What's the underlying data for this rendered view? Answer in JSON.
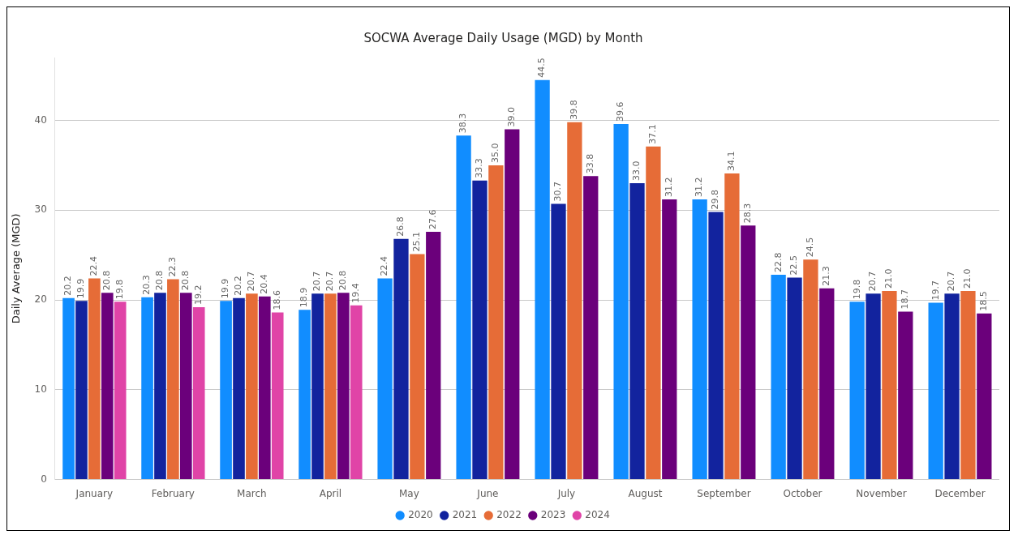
{
  "chart_data": {
    "type": "bar",
    "title": "SOCWA Average Daily Usage (MGD) by Month",
    "ylabel": "Daily Average (MGD)",
    "categories": [
      "January",
      "February",
      "March",
      "April",
      "May",
      "June",
      "July",
      "August",
      "September",
      "October",
      "November",
      "December"
    ],
    "series": [
      {
        "name": "2020",
        "color": "#118dff",
        "values": [
          20.2,
          20.3,
          19.9,
          18.9,
          22.4,
          38.3,
          44.5,
          39.6,
          31.2,
          22.8,
          19.8,
          19.7
        ],
        "value_labels": [
          "20.2",
          "20.3",
          "19.9",
          "18.9",
          "22.4",
          "38.3",
          "44.5",
          "39.6",
          "31.2",
          "22.8",
          "19.8",
          "19.7"
        ]
      },
      {
        "name": "2021",
        "color": "#12239e",
        "values": [
          19.9,
          20.8,
          20.2,
          20.7,
          26.8,
          33.3,
          30.7,
          33.0,
          29.8,
          22.5,
          20.7,
          20.7
        ],
        "value_labels": [
          "19.9",
          "20.8",
          "20.2",
          "20.7",
          "26.8",
          "33.3",
          "30.7",
          "33.0",
          "29.8",
          "22.5",
          "20.7",
          "20.7"
        ]
      },
      {
        "name": "2022",
        "color": "#e66c37",
        "values": [
          22.4,
          22.3,
          20.7,
          20.7,
          25.1,
          35.0,
          39.8,
          37.1,
          34.1,
          24.5,
          21.0,
          21.0
        ],
        "value_labels": [
          "22.4",
          "22.3",
          "20.7",
          "20.7",
          "25.1",
          "35.0",
          "39.8",
          "37.1",
          "34.1",
          "24.5",
          "21.0",
          "21.0"
        ]
      },
      {
        "name": "2023",
        "color": "#6b007b",
        "values": [
          20.8,
          20.8,
          20.4,
          20.8,
          27.6,
          39.0,
          33.8,
          31.2,
          28.3,
          21.3,
          18.7,
          18.5
        ],
        "value_labels": [
          "20.8",
          "20.8",
          "20.4",
          "20.8",
          "27.6",
          "39.0",
          "33.8",
          "31.2",
          "28.3",
          "21.3",
          "18.7",
          "18.5"
        ]
      },
      {
        "name": "2024",
        "color": "#e044a7",
        "values": [
          19.8,
          19.2,
          18.6,
          19.4,
          null,
          null,
          null,
          null,
          null,
          null,
          null,
          null
        ],
        "value_labels": [
          "19.8",
          "19.2",
          "18.6",
          "19.4",
          null,
          null,
          null,
          null,
          null,
          null,
          null,
          null
        ]
      }
    ],
    "ylim": [
      0,
      47
    ],
    "yticks": [
      0,
      10,
      20,
      30,
      40
    ],
    "grid": "y",
    "legend": "bottom"
  }
}
